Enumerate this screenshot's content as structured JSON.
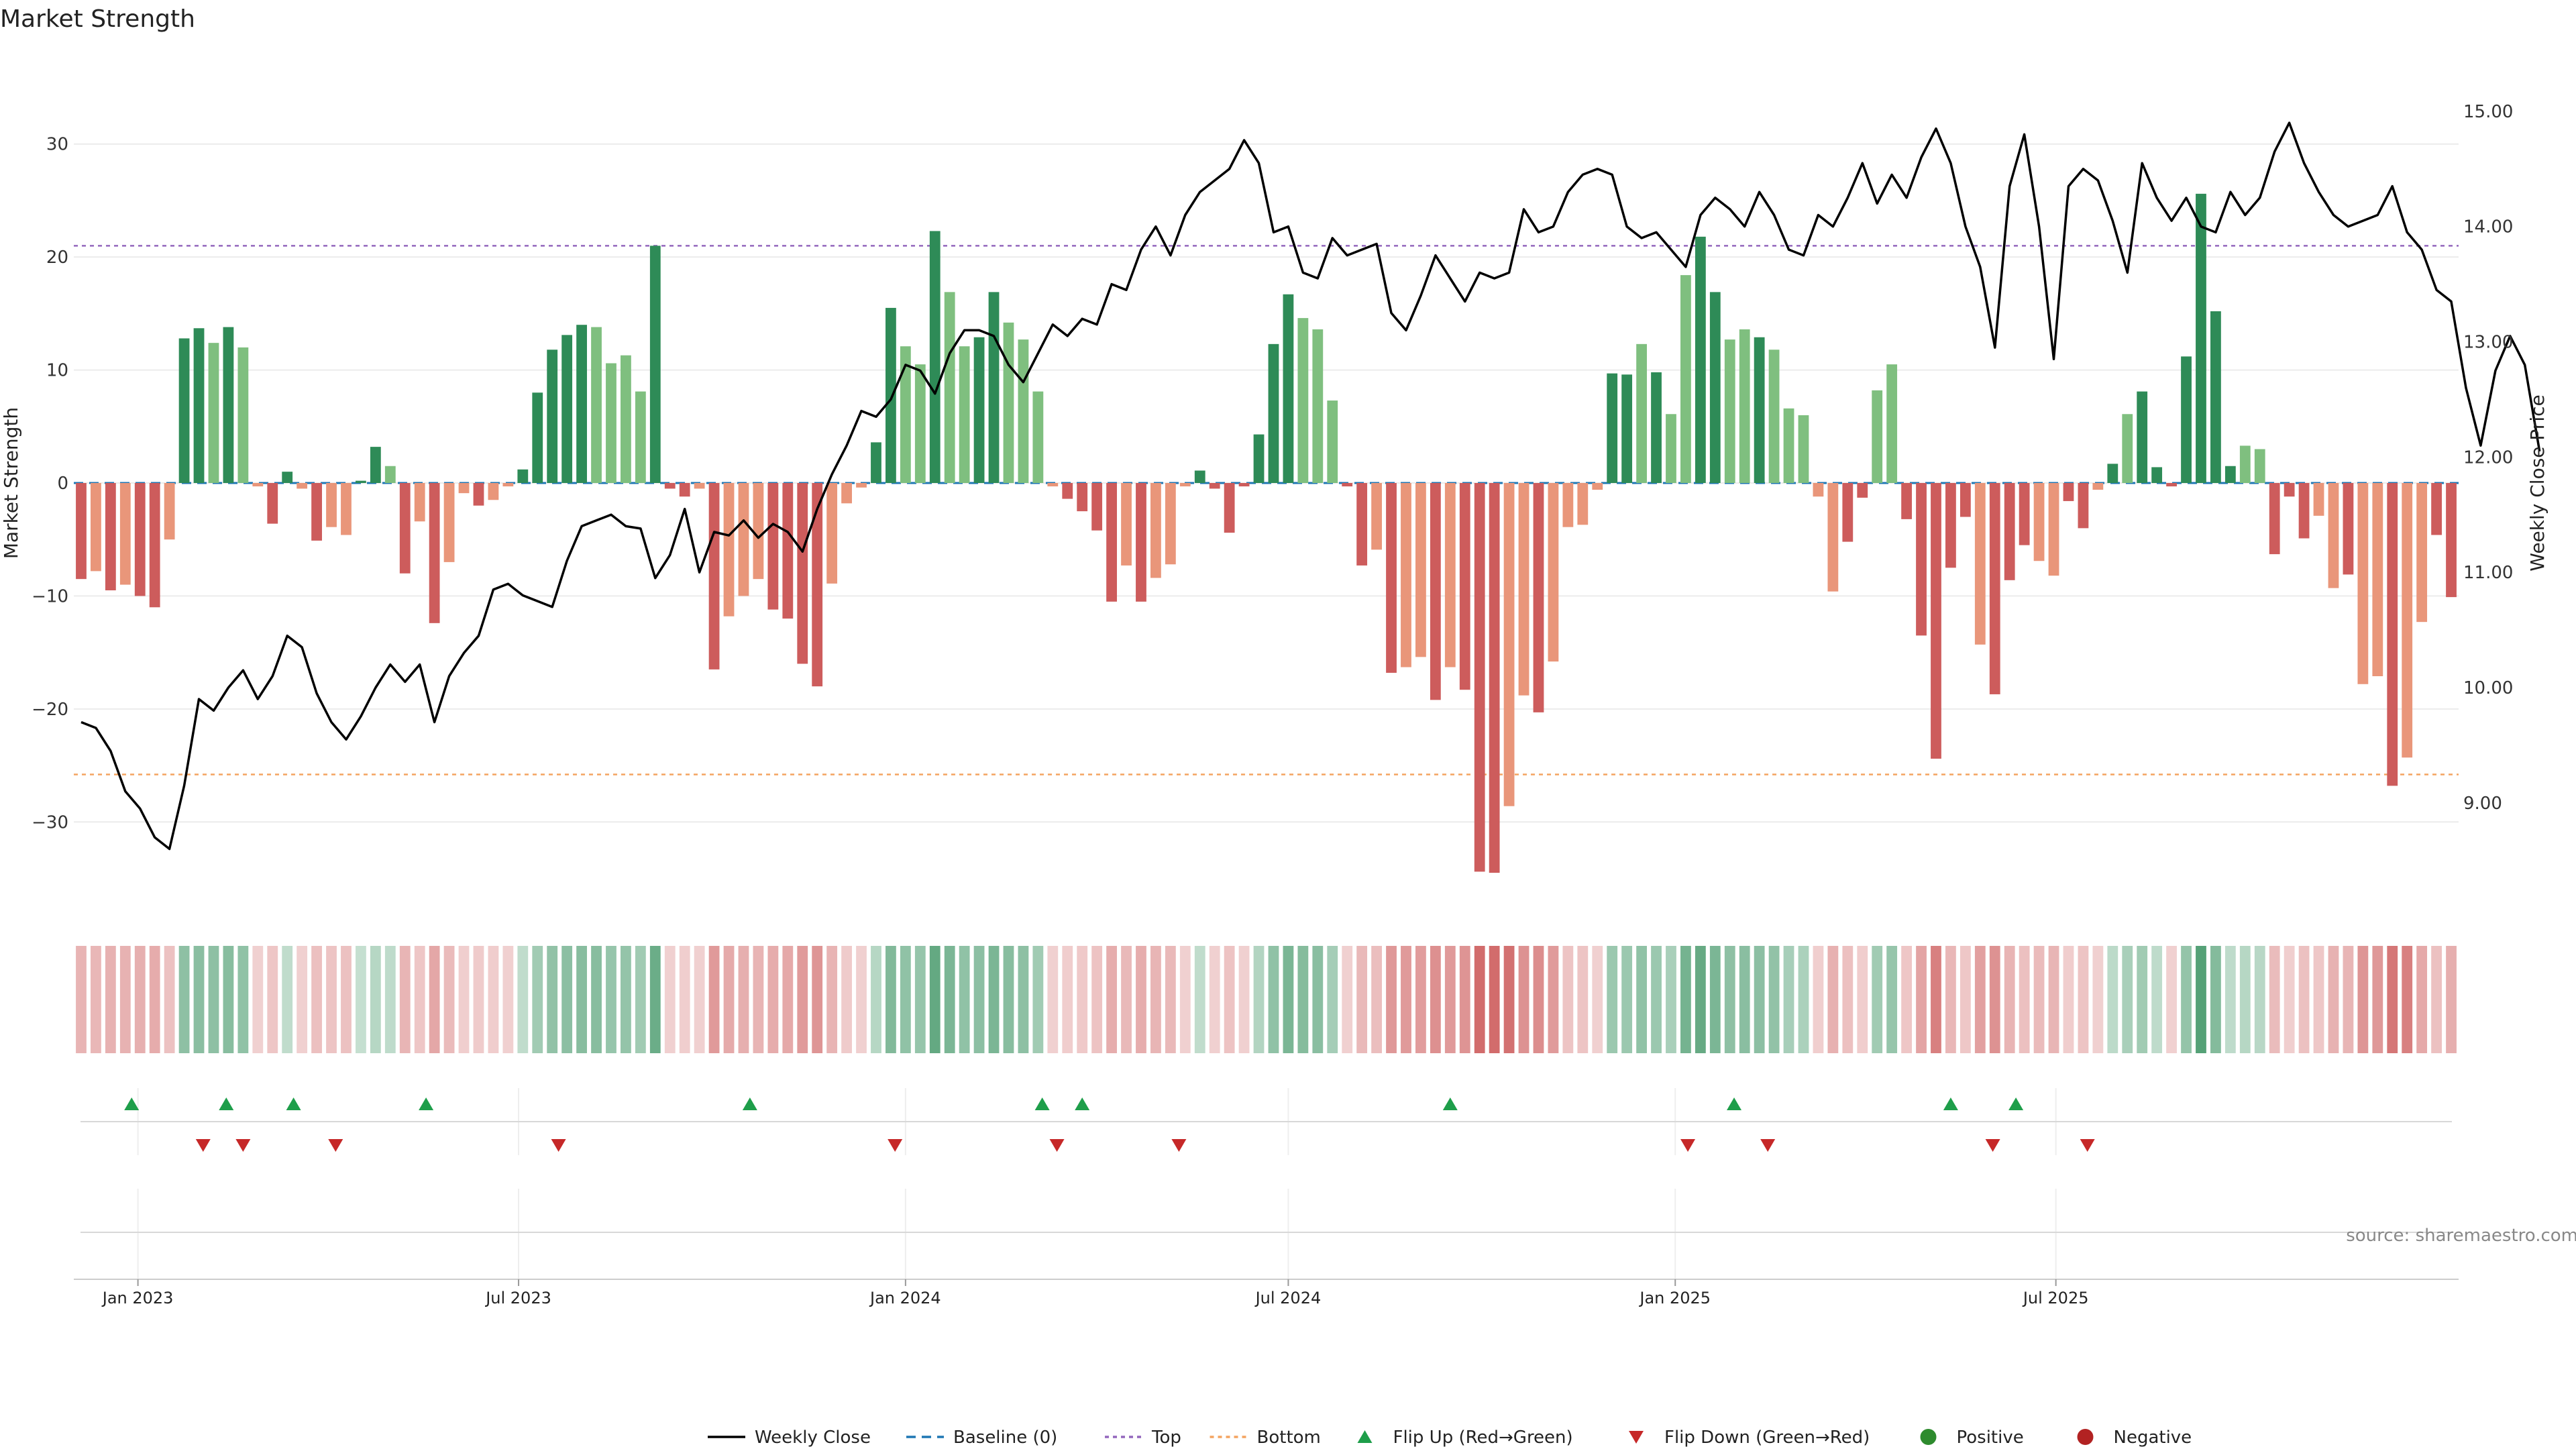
{
  "title": "Market Strength",
  "source_note": "source: sharemaestro.com",
  "colors": {
    "pos_dark": "#2e8b57",
    "pos_light": "#7fbf7f",
    "neg_dark": "#cd5c5c",
    "neg_light": "#e9967a",
    "line": "#000000",
    "baseline": "#1f77b4",
    "top": "#9467bd",
    "bottom": "#f4a460",
    "flip_up": "#1e9e4a",
    "flip_down": "#c62828",
    "positive": "#2e8b2e",
    "negative": "#b22222"
  },
  "chart_data": {
    "type": "bar",
    "title": "Market Strength",
    "ylabel": "Market Strength",
    "y2label": "Weekly Close Price",
    "start_date": "2022-12-05",
    "week_step_days": 7,
    "ylim": [
      -38,
      38
    ],
    "y2lim": [
      8.05,
      15.5
    ],
    "yticks": [
      -30,
      -20,
      -10,
      0,
      10,
      20,
      30
    ],
    "y2ticks": [
      9.0,
      10.0,
      11.0,
      12.0,
      13.0,
      14.0,
      15.0
    ],
    "y2tick_labels": [
      "9.00",
      "10.00",
      "11.00",
      "12.00",
      "13.00",
      "14.00",
      "15.00"
    ],
    "xticks": [
      {
        "date": "2023-01-01",
        "label": "Jan 2023"
      },
      {
        "date": "2023-07-01",
        "label": "Jul 2023"
      },
      {
        "date": "2024-01-01",
        "label": "Jan 2024"
      },
      {
        "date": "2024-07-01",
        "label": "Jul 2024"
      },
      {
        "date": "2025-01-01",
        "label": "Jan 2025"
      },
      {
        "date": "2025-07-01",
        "label": "Jul 2025"
      }
    ],
    "top_line": 21,
    "bottom_line": -25.8,
    "strength": [
      -8.5,
      -7.8,
      -9.5,
      -9.0,
      -10.0,
      -11.0,
      -5.0,
      12.8,
      13.7,
      12.4,
      13.8,
      12.0,
      -0.3,
      -3.6,
      1.0,
      -0.5,
      -5.1,
      -3.9,
      -4.6,
      0.2,
      3.2,
      1.5,
      -8.0,
      -3.4,
      -12.4,
      -7.0,
      -0.9,
      -2.0,
      -1.5,
      -0.3,
      1.2,
      8.0,
      11.8,
      13.1,
      14.0,
      13.8,
      10.6,
      11.3,
      8.1,
      21.0,
      -0.5,
      -1.2,
      -0.5,
      -16.5,
      -11.8,
      -10.0,
      -8.5,
      -11.2,
      -12.0,
      -16.0,
      -18.0,
      -8.9,
      -1.8,
      -0.4,
      3.6,
      15.5,
      12.1,
      10.5,
      22.3,
      16.9,
      12.1,
      12.9,
      16.9,
      14.2,
      12.7,
      8.1,
      -0.3,
      -1.4,
      -2.5,
      -4.2,
      -10.5,
      -7.3,
      -10.5,
      -8.4,
      -7.2,
      -0.3,
      1.1,
      -0.5,
      -4.4,
      -0.3,
      4.3,
      12.3,
      16.7,
      14.6,
      13.6,
      7.3,
      -0.3,
      -7.3,
      -5.9,
      -16.8,
      -16.3,
      -15.4,
      -19.2,
      -16.3,
      -18.3,
      -34.4,
      -34.5,
      -28.6,
      -18.8,
      -20.3,
      -15.8,
      -3.9,
      -3.7,
      -0.6,
      9.7,
      9.6,
      12.3,
      9.8,
      6.1,
      18.4,
      21.8,
      16.9,
      12.7,
      13.6,
      12.9,
      11.8,
      6.6,
      6.0,
      -1.2,
      -9.6,
      -5.2,
      -1.3,
      8.2,
      10.5,
      -3.2,
      -13.5,
      -24.4,
      -7.5,
      -3.0,
      -14.3,
      -18.7,
      -8.6,
      -5.5,
      -6.9,
      -8.2,
      -1.6,
      -4.0,
      -0.6,
      1.7,
      6.1,
      8.1,
      1.4,
      -0.3,
      11.2,
      25.6,
      15.2,
      1.5,
      3.3,
      3.0,
      -6.3,
      -1.2,
      -4.9,
      -2.9,
      -9.3,
      -8.1,
      -17.8,
      -17.1,
      -26.8,
      -24.3,
      -12.3,
      -4.6,
      -10.1
    ],
    "shade": [
      1,
      0,
      1,
      0,
      1,
      1,
      0,
      1,
      1,
      0,
      1,
      0,
      0,
      1,
      1,
      0,
      1,
      0,
      0,
      1,
      1,
      0,
      1,
      0,
      1,
      0,
      0,
      1,
      0,
      0,
      1,
      1,
      1,
      1,
      1,
      0,
      0,
      0,
      0,
      1,
      1,
      1,
      0,
      1,
      0,
      0,
      0,
      1,
      1,
      1,
      1,
      0,
      0,
      0,
      1,
      1,
      0,
      0,
      1,
      0,
      0,
      1,
      1,
      0,
      0,
      0,
      0,
      1,
      1,
      1,
      1,
      0,
      1,
      0,
      0,
      0,
      1,
      1,
      1,
      1,
      1,
      1,
      1,
      0,
      0,
      0,
      1,
      1,
      0,
      1,
      0,
      0,
      1,
      0,
      1,
      1,
      1,
      0,
      0,
      1,
      0,
      0,
      0,
      0,
      1,
      1,
      0,
      1,
      0,
      0,
      1,
      1,
      0,
      0,
      1,
      0,
      0,
      0,
      0,
      0,
      1,
      1,
      0,
      0,
      1,
      1,
      1,
      1,
      1,
      0,
      1,
      1,
      1,
      0,
      0,
      1,
      1,
      0,
      1,
      0,
      1,
      1,
      1,
      1,
      1,
      1,
      1,
      0,
      0,
      1,
      1,
      1,
      0,
      0,
      1,
      0,
      0,
      1,
      0,
      0,
      1,
      1,
      1,
      0,
      0,
      0,
      1
    ],
    "weekly_close": [
      9.7,
      9.65,
      9.45,
      9.1,
      8.95,
      8.7,
      8.6,
      9.15,
      9.9,
      9.8,
      10.0,
      10.15,
      9.9,
      10.1,
      10.45,
      10.35,
      9.95,
      9.7,
      9.55,
      9.75,
      10.0,
      10.2,
      10.05,
      10.2,
      9.7,
      10.1,
      10.3,
      10.45,
      10.85,
      10.9,
      10.8,
      10.75,
      10.7,
      11.1,
      11.4,
      11.45,
      11.5,
      11.4,
      11.38,
      10.95,
      11.15,
      11.55,
      11.0,
      11.35,
      11.32,
      11.45,
      11.3,
      11.42,
      11.35,
      11.18,
      11.55,
      11.85,
      12.1,
      12.4,
      12.35,
      12.5,
      12.8,
      12.75,
      12.55,
      12.9,
      13.1,
      13.1,
      13.05,
      12.8,
      12.65,
      12.9,
      13.15,
      13.05,
      13.2,
      13.15,
      13.5,
      13.45,
      13.8,
      14.0,
      13.75,
      14.1,
      14.3,
      14.4,
      14.5,
      14.75,
      14.55,
      13.95,
      14.0,
      13.6,
      13.55,
      13.9,
      13.75,
      13.8,
      13.85,
      13.25,
      13.1,
      13.4,
      13.75,
      13.55,
      13.35,
      13.6,
      13.55,
      13.6,
      14.15,
      13.95,
      14.0,
      14.3,
      14.45,
      14.5,
      14.45,
      14.0,
      13.9,
      13.95,
      13.8,
      13.65,
      14.1,
      14.25,
      14.15,
      14.0,
      14.3,
      14.1,
      13.8,
      13.75,
      14.1,
      14.0,
      14.25,
      14.55,
      14.2,
      14.45,
      14.25,
      14.6,
      14.85,
      14.55,
      14.0,
      13.65,
      12.95,
      14.35,
      14.8,
      14.0,
      12.85,
      14.35,
      14.5,
      14.4,
      14.05,
      13.6,
      14.55,
      14.25,
      14.05,
      14.25,
      14.0,
      13.95,
      14.3,
      14.1,
      14.25,
      14.65,
      14.9,
      14.55,
      14.3,
      14.1,
      14.0,
      14.05,
      14.1,
      14.35,
      13.95,
      13.8,
      13.45,
      13.35,
      12.6,
      12.1,
      12.75,
      13.05,
      12.8,
      12.05
    ],
    "flip_up_dates": [
      "2022-12-29",
      "2023-02-12",
      "2023-03-16",
      "2023-05-18",
      "2023-10-19",
      "2024-03-06",
      "2024-03-25",
      "2024-09-16",
      "2025-01-29",
      "2025-05-12",
      "2025-06-12"
    ],
    "flip_down_dates": [
      "2023-02-01",
      "2023-02-20",
      "2023-04-05",
      "2023-07-20",
      "2023-12-27",
      "2024-03-13",
      "2024-05-10",
      "2025-01-07",
      "2025-02-14",
      "2025-06-01",
      "2025-07-16"
    ],
    "legend": [
      "Weekly Close",
      "Baseline (0)",
      "Top",
      "Bottom",
      "Flip Up (Red→Green)",
      "Flip Down (Green→Red)",
      "Positive",
      "Negative"
    ]
  }
}
